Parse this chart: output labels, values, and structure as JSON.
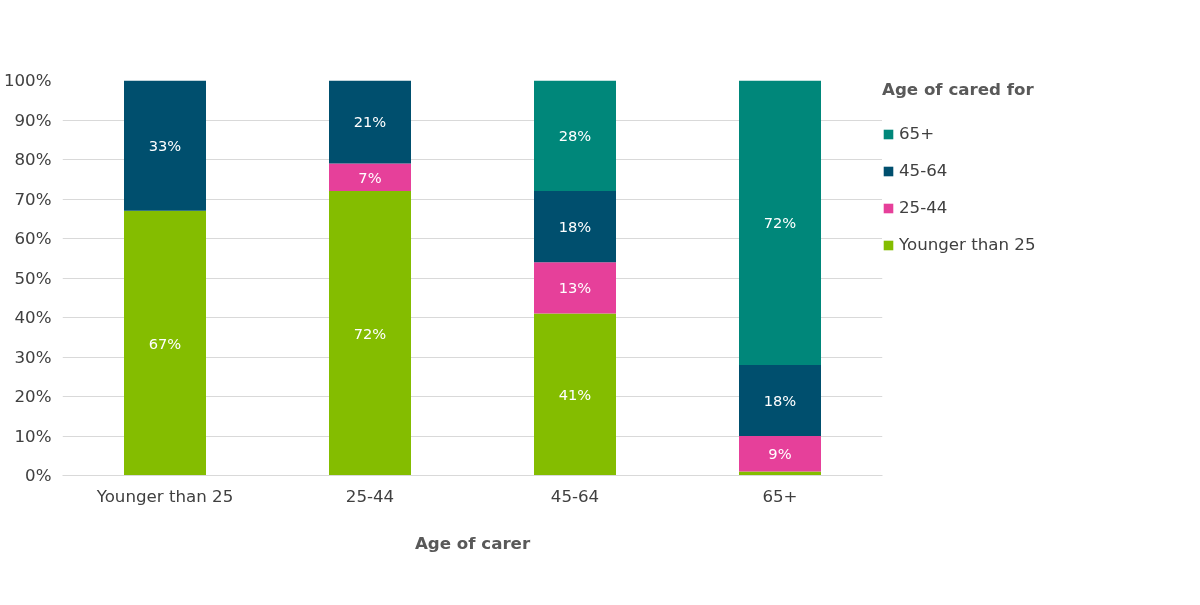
{
  "chart_data": {
    "type": "bar",
    "stacked": true,
    "xlabel": "Age of carer",
    "legend_title": "Age of cared for",
    "legend": "right",
    "grid": "y",
    "categories": [
      "Younger than 25",
      "25-44",
      "45-64",
      "65+"
    ],
    "ylim": [
      0,
      100
    ],
    "yticks": [
      {
        "value": 0,
        "label": "0%"
      },
      {
        "value": 10,
        "label": "10%"
      },
      {
        "value": 20,
        "label": "20%"
      },
      {
        "value": 30,
        "label": "30%"
      },
      {
        "value": 40,
        "label": "40%"
      },
      {
        "value": 50,
        "label": "50%"
      },
      {
        "value": 60,
        "label": "60%"
      },
      {
        "value": 70,
        "label": "70%"
      },
      {
        "value": 80,
        "label": "80%"
      },
      {
        "value": 90,
        "label": "90%"
      },
      {
        "value": 100,
        "label": "100%"
      }
    ],
    "series": [
      {
        "name": "Younger than 25",
        "color": "#84bd00",
        "values": [
          67,
          72,
          41,
          1
        ],
        "value_labels": [
          "67%",
          "72%",
          "41%",
          null
        ]
      },
      {
        "name": "25-44",
        "color": "#e6409a",
        "values": [
          0,
          7,
          13,
          9
        ],
        "value_labels": [
          null,
          "7%",
          "13%",
          "9%"
        ]
      },
      {
        "name": "45-64",
        "color": "#004f6e",
        "values": [
          33,
          21,
          18,
          18
        ],
        "value_labels": [
          "33%",
          "21%",
          "18%",
          "18%"
        ]
      },
      {
        "name": "65+",
        "color": "#00877a",
        "values": [
          0,
          0,
          28,
          72
        ],
        "value_labels": [
          null,
          null,
          "28%",
          "72%"
        ]
      }
    ]
  }
}
